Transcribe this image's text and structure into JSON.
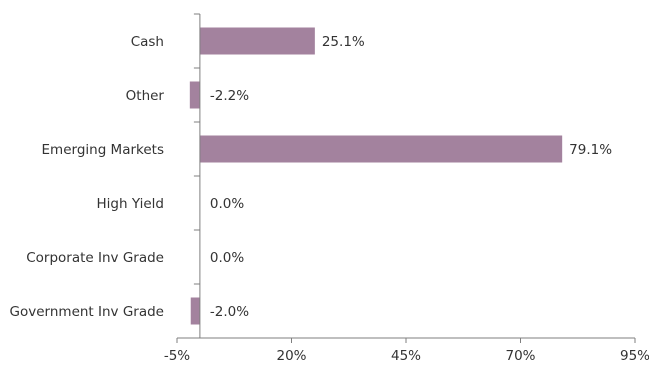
{
  "chart_data": {
    "type": "bar",
    "orientation": "horizontal",
    "categories": [
      "Cash",
      "Other",
      "Emerging Markets",
      "High Yield",
      "Corporate Inv Grade",
      "Government Inv Grade"
    ],
    "values": [
      25.1,
      -2.2,
      79.1,
      0.0,
      0.0,
      -2.0
    ],
    "data_labels": [
      "25.1%",
      "-2.2%",
      "79.1%",
      "0.0%",
      "0.0%",
      "-2.0%"
    ],
    "xlim": [
      -5,
      95
    ],
    "x_ticks": [
      -5,
      20,
      45,
      70,
      95
    ],
    "x_tick_labels": [
      "-5%",
      "20%",
      "45%",
      "70%",
      "95%"
    ],
    "title": "",
    "xlabel": "",
    "ylabel": "",
    "grid": false,
    "bar_color": "#a3829e",
    "axis_color": "#7f7f7f"
  }
}
